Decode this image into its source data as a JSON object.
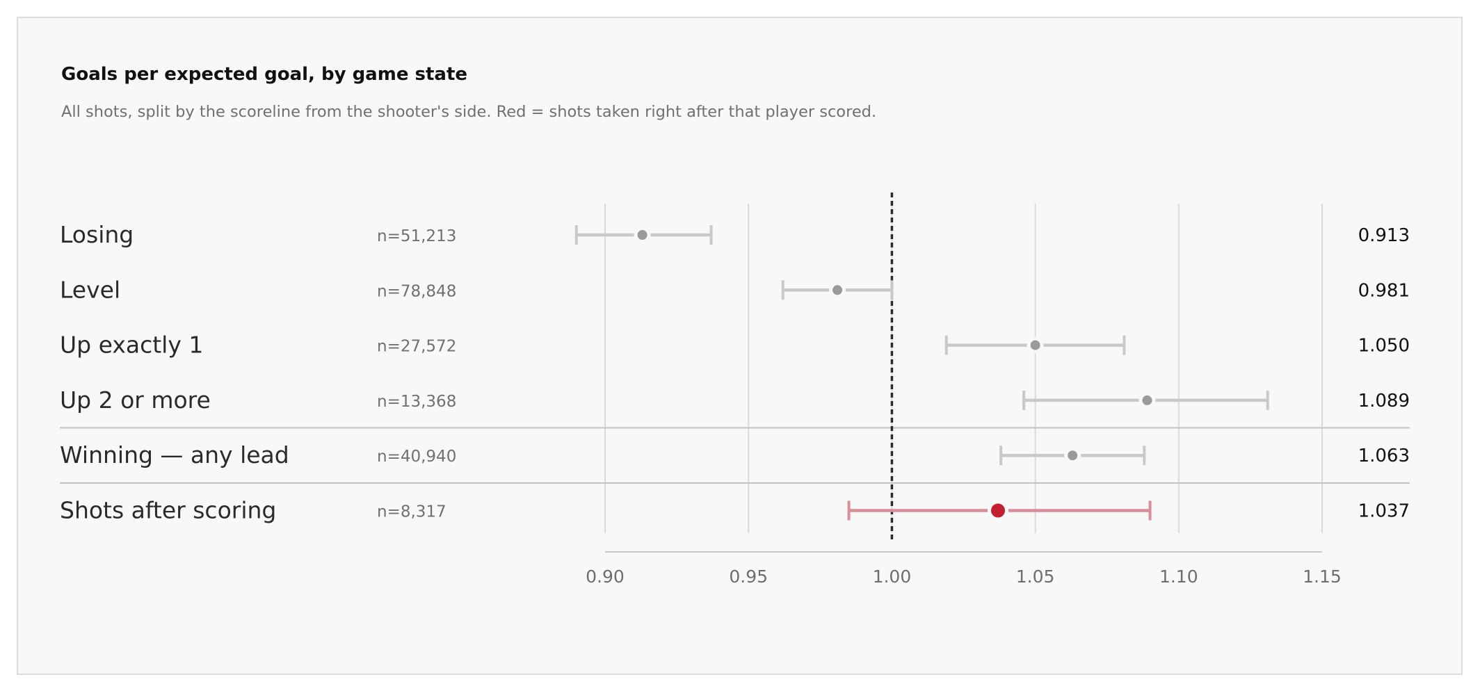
{
  "chart_data": {
    "type": "forest",
    "title": "Goals per expected goal, by game state",
    "subtitle": "All shots, split by the scoreline from the shooter's side. Red = shots taken right after that player scored.",
    "xlim": [
      0.9,
      1.15
    ],
    "x_ticks": [
      "0.90",
      "0.95",
      "1.00",
      "1.05",
      "1.10",
      "1.15"
    ],
    "reference_line": 1.0,
    "grid": true,
    "rows": [
      {
        "label": "Losing",
        "n": "n=51,213",
        "estimate": 0.913,
        "lower": 0.89,
        "upper": 0.937,
        "display": "0.913",
        "highlight": false
      },
      {
        "label": "Level",
        "n": "n=78,848",
        "estimate": 0.981,
        "lower": 0.962,
        "upper": 1.0,
        "display": "0.981",
        "highlight": false
      },
      {
        "label": "Up exactly 1",
        "n": "n=27,572",
        "estimate": 1.05,
        "lower": 1.019,
        "upper": 1.081,
        "display": "1.050",
        "highlight": false
      },
      {
        "label": "Up 2 or more",
        "n": "n=13,368",
        "estimate": 1.089,
        "lower": 1.046,
        "upper": 1.131,
        "display": "1.089",
        "highlight": false
      },
      {
        "label": "Winning — any lead",
        "n": "n=40,940",
        "estimate": 1.063,
        "lower": 1.038,
        "upper": 1.088,
        "display": "1.063",
        "highlight": false
      },
      {
        "label": "Shots after scoring",
        "n": "n=8,317",
        "estimate": 1.037,
        "lower": 0.985,
        "upper": 1.09,
        "display": "1.037",
        "highlight": true
      }
    ],
    "separators_after_rows": [
      3,
      4
    ]
  },
  "colors": {
    "background": "#f8f8f8",
    "card_border": "#dcdcdc",
    "grid": "#dadada",
    "separator": "#c2c2c2",
    "axis": "#c8c8c8",
    "reference": "#2b2b2b",
    "point": "#9a9a9a",
    "interval": "#c9c9c9",
    "highlight_point": "#c0202f",
    "highlight_interval": "#d98d96"
  }
}
